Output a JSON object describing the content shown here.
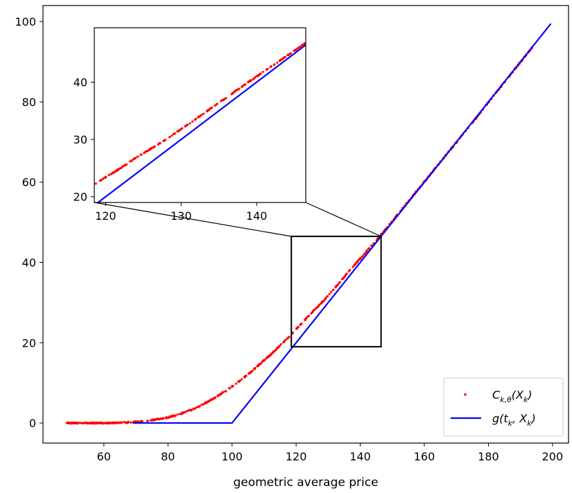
{
  "chart_data": {
    "type": "scatter",
    "title": "",
    "xlabel": "geometric average price",
    "ylabel": "",
    "xlim": [
      41,
      205
    ],
    "ylim": [
      -5,
      104
    ],
    "x_ticks": [
      "60",
      "80",
      "100",
      "120",
      "140",
      "160",
      "180",
      "200"
    ],
    "y_ticks": [
      "0",
      "20",
      "40",
      "60",
      "80",
      "100"
    ],
    "grid": false,
    "legend_position": "lower-right",
    "series": [
      {
        "name": "C_{k,θ}(X_k)",
        "kind": "scatter",
        "color": "#ff0000",
        "x": [
          48.5,
          52,
          55,
          58,
          60,
          62,
          64,
          66,
          68,
          70,
          72,
          74,
          76,
          78,
          80,
          82,
          84,
          86,
          88,
          90,
          92,
          94,
          96,
          98,
          100,
          102,
          104,
          106,
          108,
          110,
          112,
          114,
          116,
          118,
          120,
          122,
          124,
          126,
          128,
          130,
          132,
          134,
          136,
          138,
          140,
          142,
          144,
          146,
          150,
          155,
          160,
          165,
          170,
          175,
          180,
          185,
          190,
          195
        ],
        "y": [
          0,
          0,
          0,
          0,
          0,
          0,
          0.1,
          0.1,
          0.2,
          0.3,
          0.4,
          0.6,
          0.8,
          1.1,
          1.4,
          1.8,
          2.3,
          2.9,
          3.5,
          4.3,
          5.1,
          6.0,
          7.0,
          8.0,
          9.1,
          10.3,
          11.5,
          12.8,
          14.2,
          15.6,
          17.0,
          18.6,
          20.1,
          21.7,
          23.4,
          25.0,
          26.8,
          28.4,
          30.0,
          31.8,
          33.6,
          35.5,
          37.3,
          39.2,
          41.0,
          42.8,
          44.6,
          46.4,
          50.3,
          55.2,
          60.1,
          65.0,
          69.9,
          74.8,
          79.9,
          84.9,
          89.9,
          94.9
        ]
      },
      {
        "name": "g(t_k, X_k)",
        "kind": "line",
        "color": "#0000ff",
        "x": [
          69,
          100,
          199.5
        ],
        "y": [
          0,
          0,
          99.5
        ]
      }
    ],
    "legend": [
      {
        "label_base": "C",
        "label_sub": "k,θ",
        "label_rest": "(X",
        "label_sub2": "k",
        "label_end": ")"
      },
      {
        "label_base": "g(t",
        "label_sub": "k",
        "label_rest": ", X",
        "label_sub2": "k",
        "label_end": ")"
      }
    ],
    "zoom_region": {
      "x": [
        118.5,
        146.5
      ],
      "y": [
        19,
        46.5
      ]
    },
    "inset": {
      "xlim": [
        118.5,
        146.5
      ],
      "ylim": [
        19,
        49.5
      ],
      "x_ticks": [
        "120",
        "130",
        "140"
      ],
      "y_ticks": [
        "20",
        "30",
        "40"
      ]
    }
  }
}
